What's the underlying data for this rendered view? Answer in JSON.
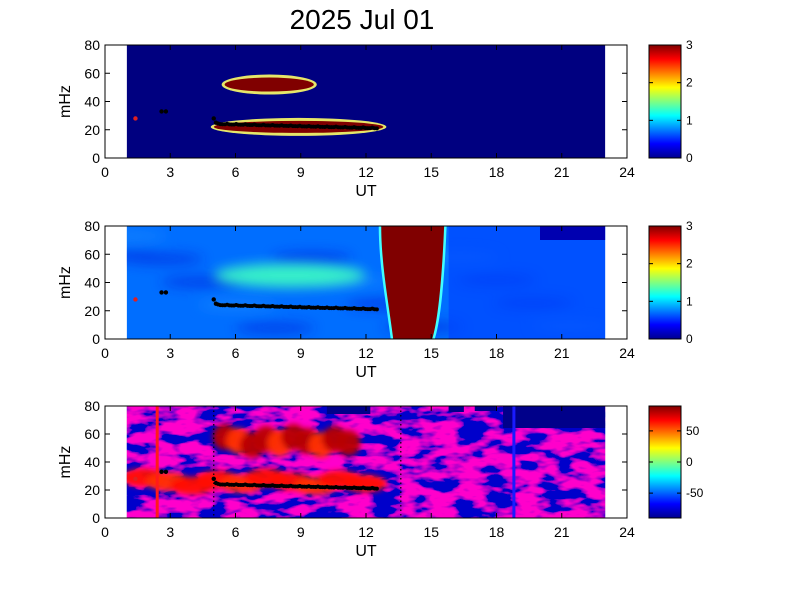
{
  "title": "2025 Jul 01",
  "chart_data": [
    {
      "type": "heatmap",
      "panel": 1,
      "xlabel": "UT",
      "ylabel": "mHz",
      "xlim": [
        0,
        24
      ],
      "ylim": [
        0,
        80
      ],
      "xticks": [
        "0",
        "3",
        "6",
        "9",
        "12",
        "15",
        "18",
        "21",
        "24"
      ],
      "yticks": [
        "0",
        "20",
        "40",
        "60",
        "80"
      ],
      "data_extent_x": [
        1,
        23
      ],
      "colormap": "jet",
      "colorbar": {
        "range": [
          0,
          3
        ],
        "ticks": [
          "0",
          "1",
          "2",
          "3"
        ]
      },
      "background_value": 0,
      "features": [
        {
          "label": "",
          "x": [
            5.5,
            9.6
          ],
          "y_center": 52,
          "intensity": 3
        },
        {
          "label": "",
          "x": [
            5.0,
            12.8
          ],
          "y_center": 22,
          "intensity": 3
        }
      ],
      "marker_track": [
        {
          "x": 1.4,
          "y": 28,
          "color": "#e02020"
        },
        {
          "x": 2.6,
          "y": 33
        },
        {
          "x": 2.8,
          "y": 33
        },
        {
          "x": 5.0,
          "y": 28
        },
        {
          "x": 5.1,
          "y": 25
        }
      ],
      "main_track": {
        "x": [
          5.2,
          12.5
        ],
        "y": [
          24,
          21
        ]
      }
    },
    {
      "type": "heatmap",
      "panel": 2,
      "xlabel": "UT",
      "ylabel": "mHz",
      "xlim": [
        0,
        24
      ],
      "ylim": [
        0,
        80
      ],
      "xticks": [
        "0",
        "3",
        "6",
        "9",
        "12",
        "15",
        "18",
        "21",
        "24"
      ],
      "yticks": [
        "0",
        "20",
        "40",
        "60",
        "80"
      ],
      "data_extent_x": [
        1,
        23
      ],
      "colormap": "jet",
      "colorbar": {
        "range": [
          0,
          3
        ],
        "ticks": [
          "0",
          "1",
          "2",
          "3"
        ]
      },
      "background_value": 0.7,
      "features": [
        {
          "label": "",
          "x": [
            12.7,
            15.5
          ],
          "y_center": 40,
          "intensity": 3
        },
        {
          "label": "",
          "x": [
            5.0,
            12.0
          ],
          "y_center": 45,
          "intensity": 1.3
        }
      ],
      "marker_track": [
        {
          "x": 1.4,
          "y": 28,
          "color": "#e02020"
        },
        {
          "x": 2.6,
          "y": 33
        },
        {
          "x": 2.8,
          "y": 33
        },
        {
          "x": 5.0,
          "y": 28
        },
        {
          "x": 5.1,
          "y": 25
        }
      ],
      "main_track": {
        "x": [
          5.2,
          12.5
        ],
        "y": [
          24,
          21
        ]
      }
    },
    {
      "type": "heatmap",
      "panel": 3,
      "xlabel": "UT",
      "ylabel": "mHz",
      "xlim": [
        0,
        24
      ],
      "ylim": [
        0,
        80
      ],
      "xticks": [
        "0",
        "3",
        "6",
        "9",
        "12",
        "15",
        "18",
        "21",
        "24"
      ],
      "yticks": [
        "0",
        "20",
        "40",
        "60",
        "80"
      ],
      "data_extent_x": [
        1,
        23
      ],
      "colormap": "jet",
      "colorbar": {
        "range": [
          -90,
          90
        ],
        "ticks": [
          "-50",
          "0",
          "50"
        ]
      },
      "background_value": 0,
      "features": [
        {
          "label": "",
          "x": [
            5.2,
            11.5
          ],
          "y_center": 55,
          "intensity": 80
        },
        {
          "label": "",
          "x": [
            1.2,
            12.5
          ],
          "y_center": 26,
          "intensity": 65
        }
      ],
      "vertical_lines": [
        {
          "x": 2.4,
          "color": "#ff1a1a",
          "style": "solid"
        },
        {
          "x": 18.8,
          "color": "#1a1aff",
          "style": "solid"
        },
        {
          "x": 5.0,
          "color": "#000000",
          "style": "dotted"
        },
        {
          "x": 13.6,
          "color": "#000000",
          "style": "dotted"
        }
      ],
      "marker_track": [
        {
          "x": 1.4,
          "y": 28,
          "color": "#e02020"
        },
        {
          "x": 2.6,
          "y": 33
        },
        {
          "x": 2.8,
          "y": 33
        },
        {
          "x": 5.0,
          "y": 28
        },
        {
          "x": 5.1,
          "y": 25
        }
      ],
      "main_track": {
        "x": [
          5.2,
          12.5
        ],
        "y": [
          24,
          21
        ]
      }
    }
  ]
}
